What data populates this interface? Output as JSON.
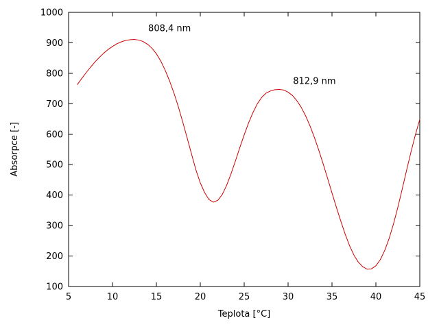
{
  "figure": {
    "background": "#ffffff",
    "border_color": "#000000",
    "text_color": "#000000"
  },
  "chart_data": {
    "type": "line",
    "title": "",
    "xlabel": "Teplota [°C]",
    "ylabel": "Absorpce [-]",
    "xlim": [
      5,
      45
    ],
    "ylim": [
      100,
      1000
    ],
    "xticks": [
      5,
      10,
      15,
      20,
      25,
      30,
      35,
      40,
      45
    ],
    "yticks": [
      100,
      200,
      300,
      400,
      500,
      600,
      700,
      800,
      900,
      1000
    ],
    "grid": false,
    "legend_position": "none",
    "series": [
      {
        "name": "absorbance-vs-temperature",
        "color": "#cc0000",
        "x": [
          6.0,
          6.5,
          7.0,
          7.5,
          8.0,
          8.5,
          9.0,
          9.5,
          10.0,
          10.5,
          11.0,
          11.5,
          12.0,
          12.5,
          13.0,
          13.5,
          14.0,
          14.5,
          15.0,
          15.5,
          16.0,
          16.5,
          17.0,
          17.5,
          18.0,
          18.5,
          19.0,
          19.5,
          20.0,
          20.5,
          21.0,
          21.5,
          22.0,
          22.5,
          23.0,
          23.5,
          24.0,
          24.5,
          25.0,
          25.5,
          26.0,
          26.5,
          27.0,
          27.5,
          28.0,
          28.5,
          29.0,
          29.5,
          30.0,
          30.5,
          31.0,
          31.5,
          32.0,
          32.5,
          33.0,
          33.5,
          34.0,
          34.5,
          35.0,
          35.5,
          36.0,
          36.5,
          37.0,
          37.5,
          38.0,
          38.5,
          39.0,
          39.5,
          40.0,
          40.5,
          41.0,
          41.5,
          42.0,
          42.5,
          43.0,
          43.5,
          44.0,
          44.5,
          45.0
        ],
        "y": [
          763,
          783,
          802,
          820,
          837,
          852,
          866,
          878,
          888,
          897,
          903,
          908,
          910,
          911,
          909,
          904,
          895,
          882,
          864,
          840,
          810,
          775,
          735,
          690,
          640,
          588,
          535,
          483,
          440,
          408,
          385,
          377,
          383,
          402,
          432,
          470,
          512,
          556,
          598,
          637,
          671,
          700,
          721,
          735,
          742,
          746,
          747,
          745,
          738,
          727,
          710,
          688,
          660,
          627,
          589,
          547,
          502,
          455,
          407,
          360,
          315,
          272,
          234,
          203,
          180,
          165,
          157,
          158,
          168,
          188,
          218,
          257,
          305,
          360,
          420,
          482,
          542,
          598,
          649
        ]
      }
    ],
    "annotations": [
      {
        "text": "808,4 nm",
        "x": 16.5,
        "y": 945
      },
      {
        "text": "812,9 nm",
        "x": 33.0,
        "y": 772
      }
    ]
  }
}
